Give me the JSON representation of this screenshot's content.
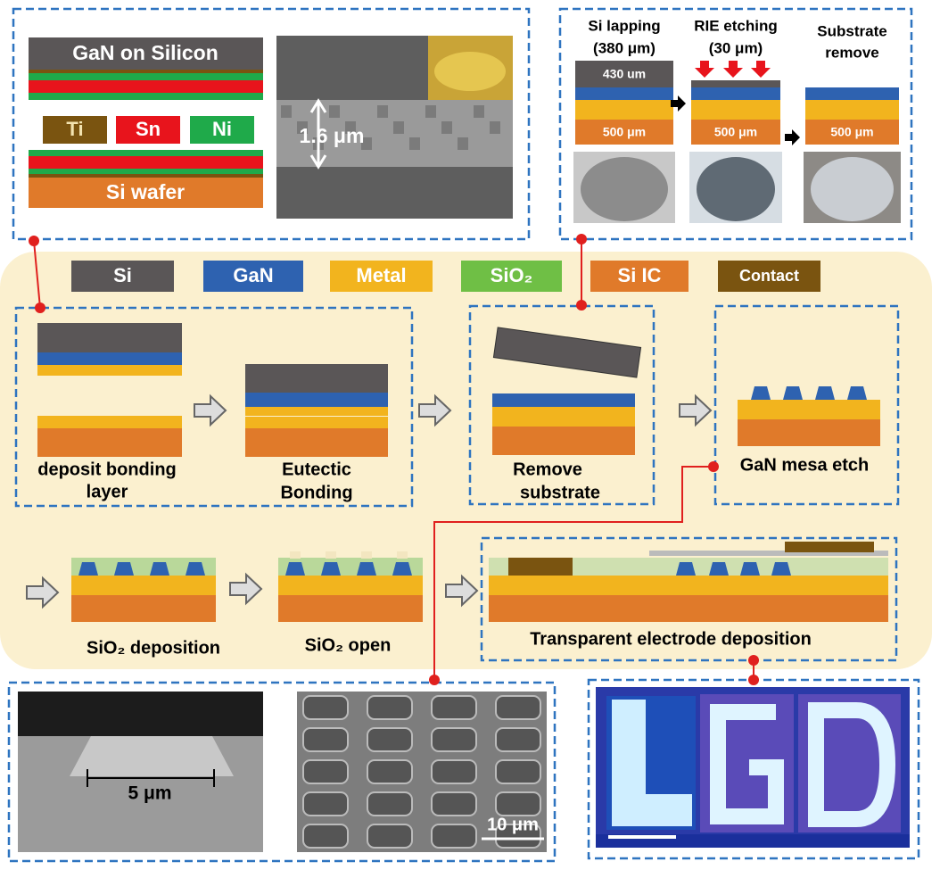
{
  "top_left": {
    "stack_top": "GaN on Silicon",
    "metals": [
      "Ti",
      "Sn",
      "Ni"
    ],
    "stack_bottom": "Si wafer",
    "sem_label": "1.6 μm"
  },
  "top_right": {
    "steps": [
      {
        "title": [
          "Si lapping",
          "(380 μm)"
        ],
        "layers": [
          "430 um",
          "500 μm"
        ]
      },
      {
        "title": [
          "RIE etching",
          "(30 μm)"
        ],
        "layers": [
          "500 μm"
        ]
      },
      {
        "title": [
          "Substrate",
          "remove"
        ],
        "layers": [
          "500 μm"
        ]
      }
    ]
  },
  "legend": [
    "Si",
    "GaN",
    "Metal",
    "SiO₂",
    "Si IC",
    "Contact"
  ],
  "steps": [
    [
      "deposit bonding",
      "layer"
    ],
    [
      "Eutectic",
      "Bonding"
    ],
    [
      "Remove",
      "substrate"
    ],
    [
      "GaN mesa etch"
    ],
    [
      "SiO₂ deposition"
    ],
    [
      "SiO₂ open"
    ],
    [
      "Transparent electrode deposition"
    ]
  ],
  "bottom": {
    "scale_left": "5 μm",
    "scale_middle": "10 μm"
  }
}
